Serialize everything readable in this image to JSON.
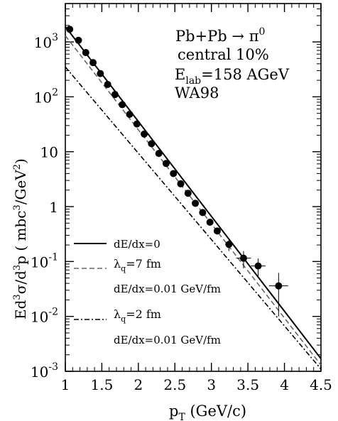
{
  "chart_data": {
    "type": "scatter",
    "xlabel": "p",
    "xlabel_sub": "T",
    "xlabel_unit": " (GeV/c)",
    "ylabel_parts": {
      "t1": "Ed",
      "s1": "3",
      "t2": "σ/d",
      "s2": "3",
      "t3": "p ( mbc",
      "s3": "3",
      "t4": "/GeV",
      "s4": "2",
      "t5": ")"
    },
    "xlim": [
      1,
      4.5
    ],
    "ylim": [
      0.001,
      5000
    ],
    "yscale": "log",
    "grid": false,
    "x_ticks": [
      {
        "v": 1,
        "label": "1"
      },
      {
        "v": 1.5,
        "label": "1.5"
      },
      {
        "v": 2,
        "label": "2"
      },
      {
        "v": 2.5,
        "label": "2.5"
      },
      {
        "v": 3,
        "label": "3"
      },
      {
        "v": 3.5,
        "label": "3.5"
      },
      {
        "v": 4,
        "label": "4"
      },
      {
        "v": 4.5,
        "label": "4.5"
      }
    ],
    "y_ticks": [
      {
        "v": 1000,
        "base": "10",
        "exp": "3"
      },
      {
        "v": 100,
        "base": "10",
        "exp": "2"
      },
      {
        "v": 10,
        "base": "10",
        "exp": ""
      },
      {
        "v": 1,
        "base": "1",
        "exp": ""
      },
      {
        "v": 0.1,
        "base": "10",
        "exp": "-1"
      },
      {
        "v": 0.01,
        "base": "10",
        "exp": "-2"
      },
      {
        "v": 0.001,
        "base": "10",
        "exp": "-3"
      }
    ],
    "annotation": {
      "line1": "Pb+Pb → π",
      "line1_sup": "0",
      "line2": "central 10%",
      "line3": "E",
      "line3_sub": "lab",
      "line3_rest": "=158 AGeV",
      "line4": "WA98"
    },
    "data_points": [
      {
        "x": 1.06,
        "y": 1700,
        "yerr": 0
      },
      {
        "x": 1.18,
        "y": 1070,
        "yerr": 0
      },
      {
        "x": 1.28,
        "y": 640,
        "yerr": 0
      },
      {
        "x": 1.38,
        "y": 420,
        "yerr": 0
      },
      {
        "x": 1.48,
        "y": 265,
        "yerr": 0
      },
      {
        "x": 1.58,
        "y": 168,
        "yerr": 0
      },
      {
        "x": 1.68,
        "y": 110,
        "yerr": 0
      },
      {
        "x": 1.78,
        "y": 72,
        "yerr": 0
      },
      {
        "x": 1.88,
        "y": 48,
        "yerr": 0
      },
      {
        "x": 1.98,
        "y": 32,
        "yerr": 0
      },
      {
        "x": 2.08,
        "y": 21,
        "yerr": 0
      },
      {
        "x": 2.18,
        "y": 14,
        "yerr": 0
      },
      {
        "x": 2.28,
        "y": 9.3,
        "yerr": 0
      },
      {
        "x": 2.38,
        "y": 6.1,
        "yerr": 0
      },
      {
        "x": 2.48,
        "y": 4.0,
        "yerr": 0
      },
      {
        "x": 2.58,
        "y": 2.6,
        "yerr": 0
      },
      {
        "x": 2.68,
        "y": 1.75,
        "yerr": 0
      },
      {
        "x": 2.78,
        "y": 1.15,
        "yerr": 0
      },
      {
        "x": 2.88,
        "y": 0.78,
        "yerr": 0
      },
      {
        "x": 2.98,
        "y": 0.52,
        "yerr": 0
      },
      {
        "x": 3.08,
        "y": 0.36,
        "yerr": 0
      },
      {
        "x": 3.24,
        "y": 0.205,
        "yerr": 0.05,
        "xerr": 0.05
      },
      {
        "x": 3.44,
        "y": 0.115,
        "yerr": 0.04,
        "xerr": 0.1
      },
      {
        "x": 3.64,
        "y": 0.083,
        "yerr": 0.03,
        "xerr": 0.1
      },
      {
        "x": 3.92,
        "y": 0.036,
        "yerr": 0.026,
        "xerr": 0.13
      }
    ],
    "series": [
      {
        "name": "dE/dx=0",
        "style": "solid",
        "points": [
          [
            1.0,
            1900
          ],
          [
            4.5,
            0.0017
          ]
        ]
      },
      {
        "name": "λq=7 fm dE/dx=0.01 GeV/fm",
        "style": "dashed",
        "points": [
          [
            1.0,
            1300
          ],
          [
            4.5,
            0.0013
          ]
        ]
      },
      {
        "name": "λq=2 fm dE/dx=0.01 GeV/fm",
        "style": "dashdot",
        "points": [
          [
            1.0,
            350
          ],
          [
            4.5,
            0.0011
          ]
        ]
      }
    ],
    "legend": {
      "l1": "dE/dx=0",
      "l2_lambda": "λ",
      "l2_sub": "q",
      "l2_rest": "=7 fm",
      "l3": "dE/dx=0.01 GeV/fm",
      "l4_lambda": "λ",
      "l4_sub": "q",
      "l4_rest": "=2 fm",
      "l5": "dE/dx=0.01 GeV/fm"
    },
    "colors": {
      "axis": "#000000",
      "solid": "#000000",
      "dashed": "#666666",
      "dashdot": "#000000",
      "marker": "#000000"
    }
  }
}
